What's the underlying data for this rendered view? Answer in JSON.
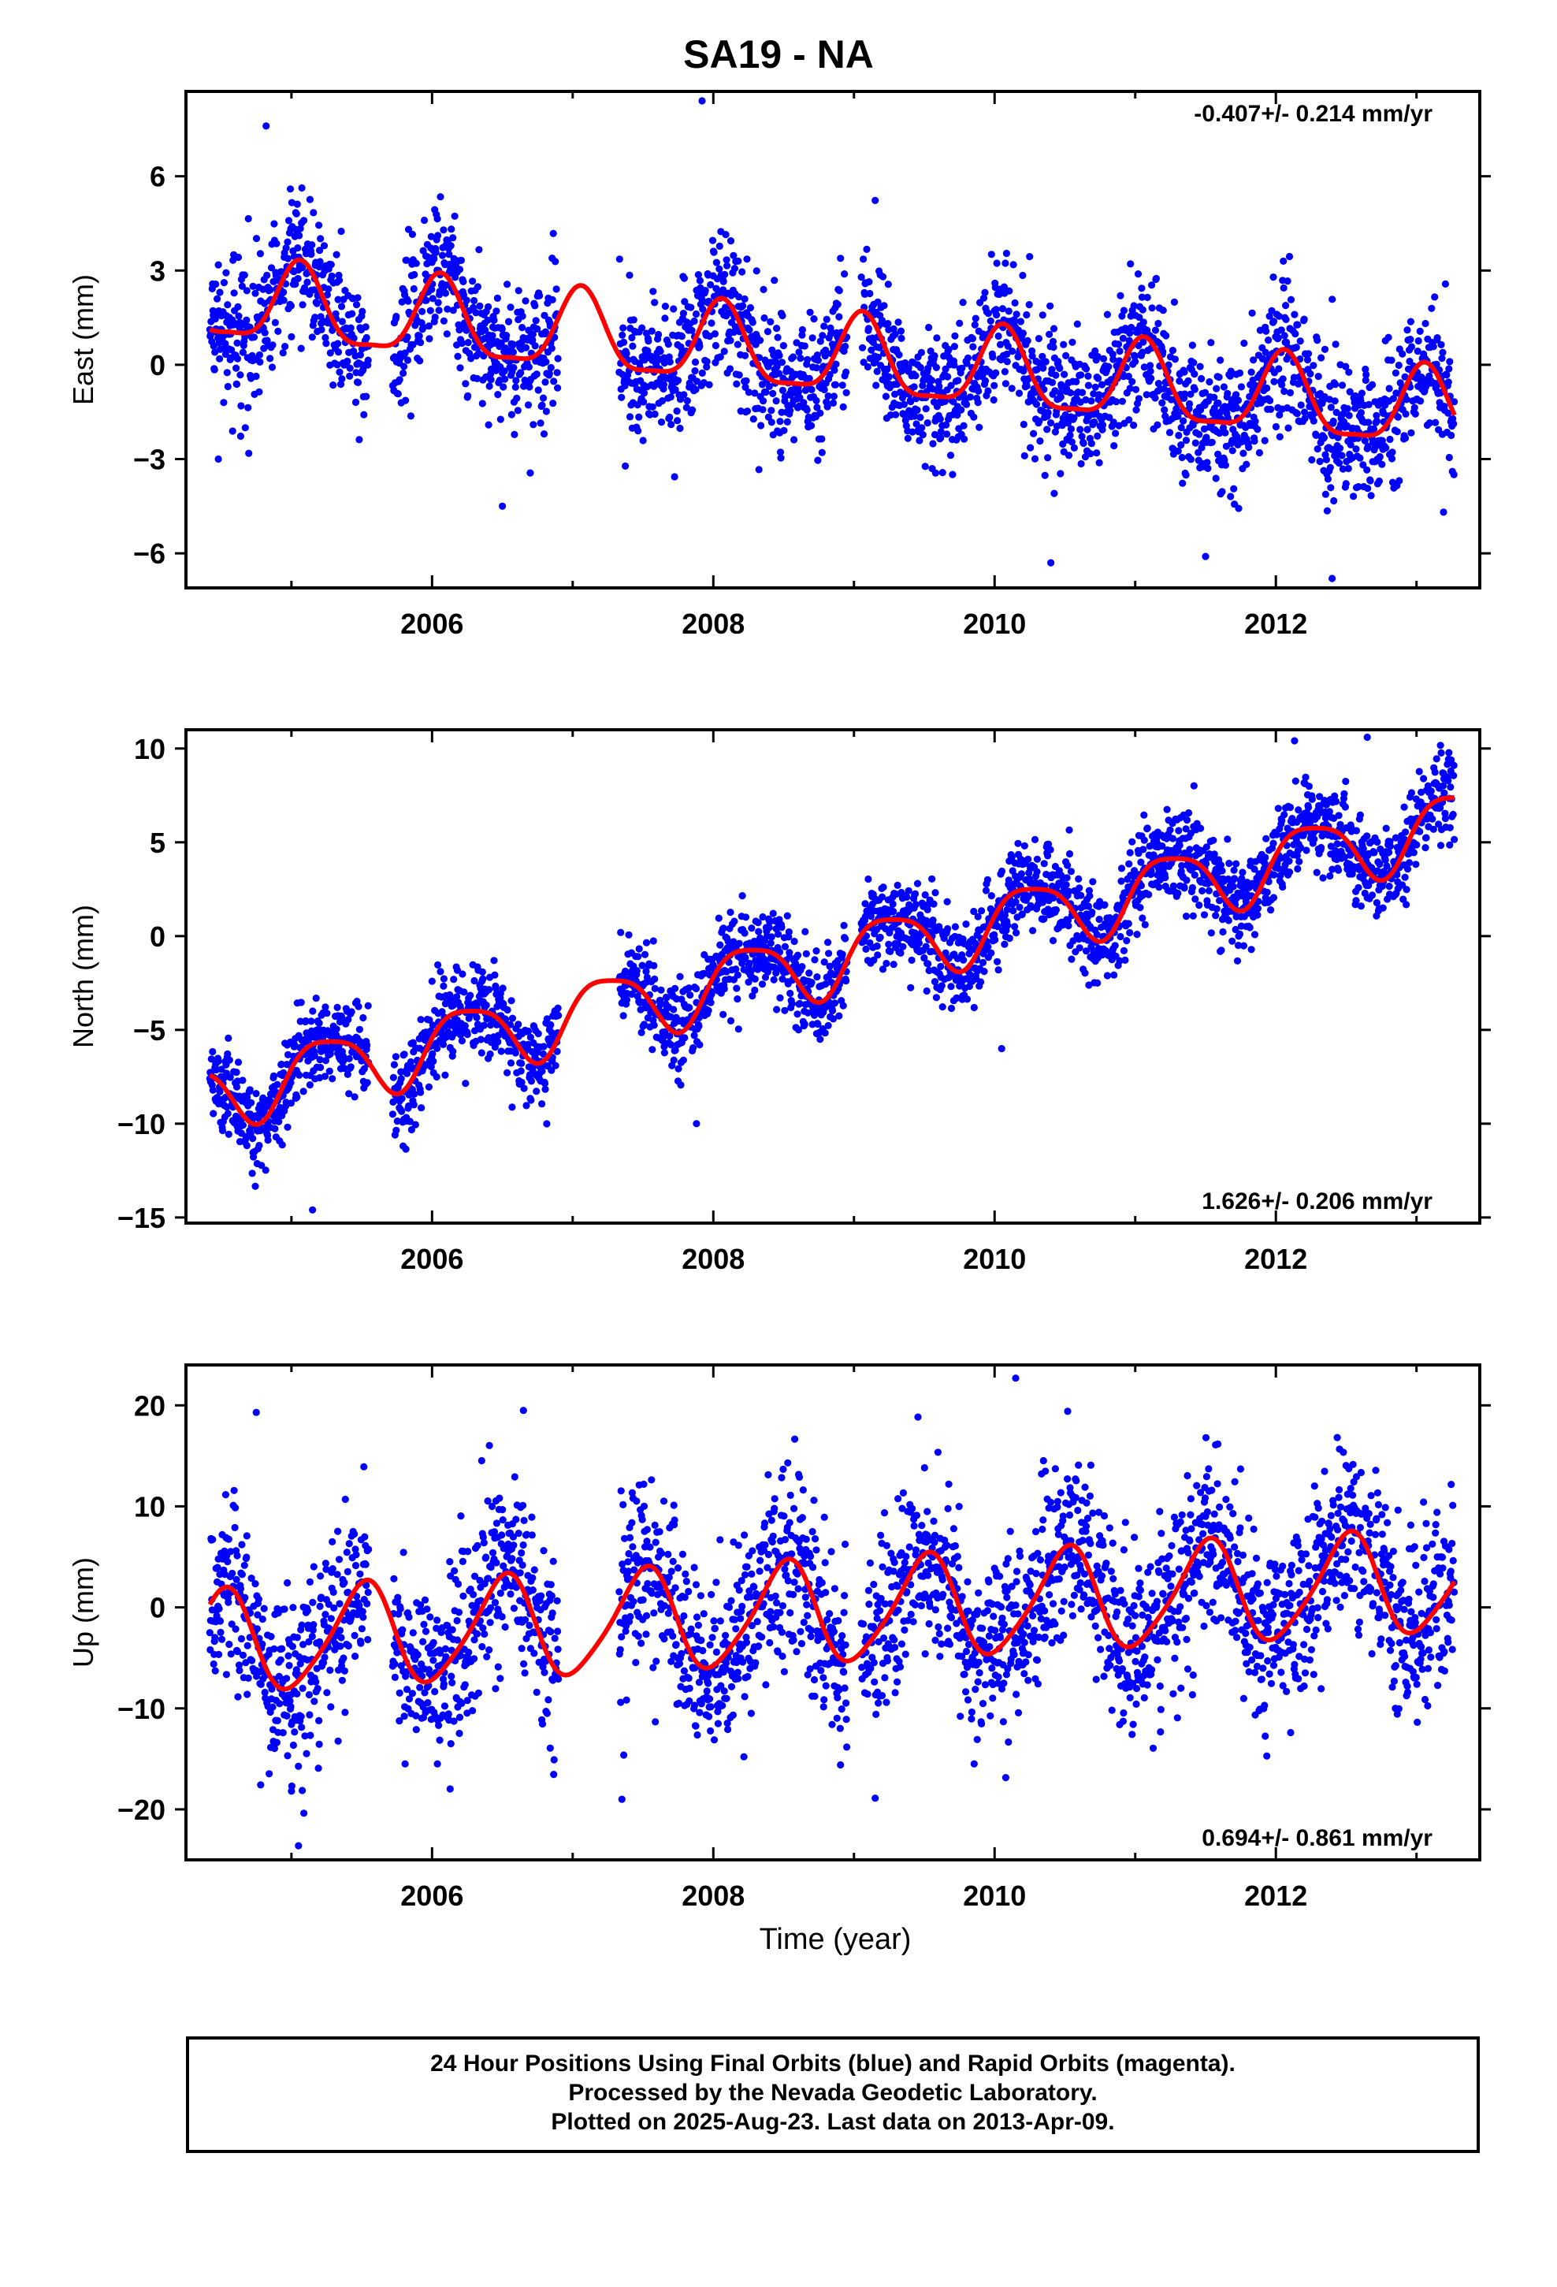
{
  "title": "SA19 - NA",
  "xlabel": "Time (year)",
  "colors": {
    "points": "#0000ff",
    "fit": "#ff0000"
  },
  "caption": [
    "24 Hour Positions Using Final Orbits (blue) and Rapid Orbits (magenta).",
    "Processed by the Nevada Geodetic Laboratory.",
    "Plotted on 2025-Aug-23. Last data on 2013-Apr-09."
  ],
  "chart_data": [
    {
      "type": "scatter",
      "ylabel": "East (mm)",
      "rate_label": "-0.407+/- 0.214 mm/yr",
      "rate_position": "top-right",
      "xlim": [
        2004.25,
        2013.45
      ],
      "ylim": [
        -7.1,
        8.7
      ],
      "xticks": [
        2006,
        2008,
        2010,
        2012
      ],
      "yticks": [
        -6,
        -3,
        0,
        3,
        6
      ],
      "data_range": [
        2004.42,
        2013.27
      ],
      "fit": {
        "rate": -0.407,
        "annual_amp": 1.25,
        "annual_phase": 1.2,
        "semiannual_amp": 0.35,
        "semiannual_phase": 0.8,
        "noise": 1.1,
        "offset_at_mean": 0.2
      },
      "anomalies": [
        [
          2004.82,
          7.6
        ],
        [
          2007.92,
          8.4
        ],
        [
          2010.4,
          -6.3
        ],
        [
          2011.5,
          -6.1
        ],
        [
          2012.4,
          -6.8
        ],
        [
          2004.48,
          -3.0
        ],
        [
          2006.5,
          -4.5
        ]
      ]
    },
    {
      "type": "scatter",
      "ylabel": "North (mm)",
      "rate_label": "1.626+/- 0.206 mm/yr",
      "rate_position": "bottom-right",
      "xlim": [
        2004.25,
        2013.45
      ],
      "ylim": [
        -15.3,
        11.0
      ],
      "xticks": [
        2006,
        2008,
        2010,
        2012
      ],
      "yticks": [
        -15,
        -10,
        -5,
        0,
        5,
        10
      ],
      "data_range": [
        2004.42,
        2013.27
      ],
      "fit": {
        "rate": 1.626,
        "annual_amp": 1.8,
        "annual_phase": 0.0,
        "semiannual_amp": 0.4,
        "semiannual_phase": 1.3,
        "noise": 1.2,
        "offset_at_mean": -1.2
      },
      "anomalies": [
        [
          2005.15,
          -14.6
        ],
        [
          2007.88,
          -10.0
        ],
        [
          2010.05,
          -6.0
        ],
        [
          2012.65,
          10.6
        ]
      ]
    },
    {
      "type": "scatter",
      "ylabel": "Up (mm)",
      "rate_label": "0.694+/- 0.861 mm/yr",
      "rate_position": "bottom-right",
      "xlim": [
        2004.25,
        2013.45
      ],
      "ylim": [
        -25.0,
        24.0
      ],
      "xticks": [
        2006,
        2008,
        2010,
        2012
      ],
      "yticks": [
        -20,
        -10,
        0,
        10,
        20
      ],
      "data_range": [
        2004.42,
        2013.27
      ],
      "fit": {
        "rate": 0.694,
        "annual_amp": 5.0,
        "annual_phase": -1.6,
        "semiannual_amp": 0.8,
        "semiannual_phase": 0.4,
        "noise": 4.5,
        "offset_at_mean": -0.5
      },
      "anomalies": [
        [
          2005.05,
          -23.6
        ],
        [
          2010.15,
          22.7
        ],
        [
          2007.35,
          -19.0
        ],
        [
          2004.75,
          19.3
        ],
        [
          2006.65,
          19.5
        ],
        [
          2005.0,
          -18.2
        ]
      ]
    }
  ]
}
